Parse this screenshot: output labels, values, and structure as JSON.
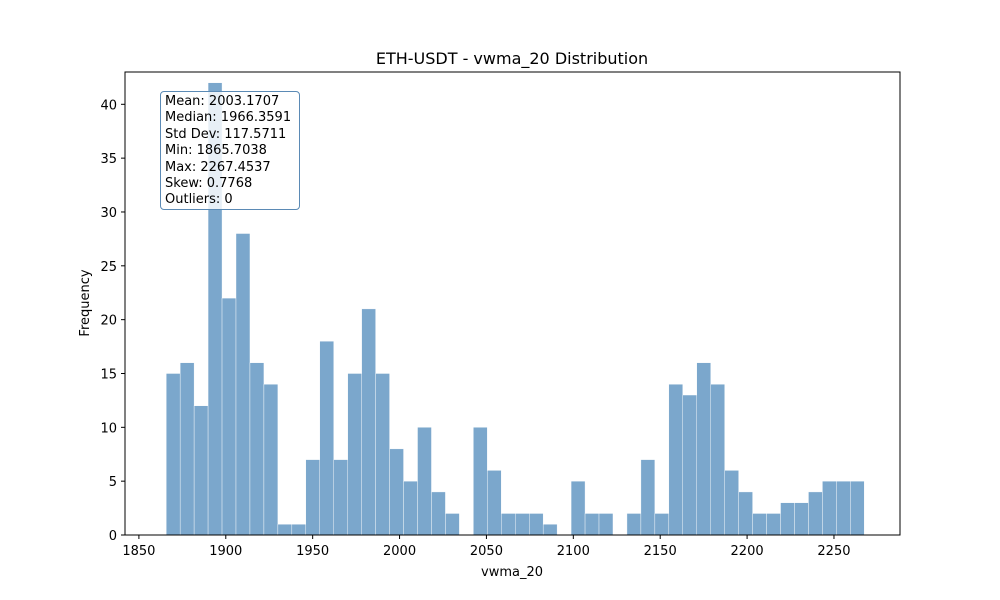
{
  "chart_data": {
    "type": "bar",
    "subtype": "histogram",
    "title": "ETH-USDT - vwma_20 Distribution",
    "xlabel": "vwma_20",
    "ylabel": "Frequency",
    "xlim": [
      1842,
      2288
    ],
    "ylim": [
      0,
      43
    ],
    "xticks": [
      1850,
      1900,
      1950,
      2000,
      2050,
      2100,
      2150,
      2200,
      2250
    ],
    "yticks": [
      0,
      5,
      10,
      15,
      20,
      25,
      30,
      35,
      40
    ],
    "bin_start": 1865.7038,
    "bin_end": 2267.4537,
    "bin_width": 8.035,
    "counts": [
      15,
      16,
      12,
      42,
      22,
      28,
      16,
      14,
      1,
      1,
      7,
      18,
      7,
      15,
      21,
      15,
      8,
      5,
      10,
      4,
      2,
      0,
      10,
      6,
      2,
      2,
      2,
      1,
      0,
      5,
      2,
      2,
      0,
      2,
      7,
      2,
      14,
      13,
      16,
      14,
      6,
      4,
      2,
      2,
      3,
      3,
      4,
      5,
      5,
      5
    ],
    "color": "#7ba7cc",
    "grid": false,
    "stats_box_position": "top-left",
    "stats": [
      "Mean: 2003.1707",
      "Median: 1966.3591",
      "Std Dev: 117.5711",
      "Min: 1865.7038",
      "Max: 2267.4537",
      "Skew: 0.7768",
      "Outliers: 0"
    ]
  }
}
